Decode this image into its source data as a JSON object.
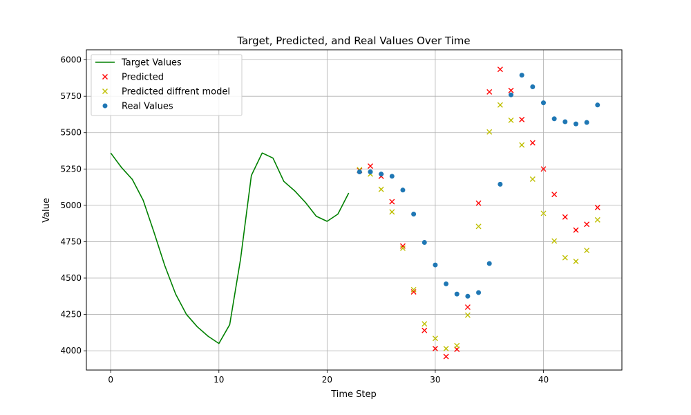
{
  "chart_data": {
    "type": "scatter",
    "title": "Target, Predicted, and Real Values Over Time",
    "xlabel": "Time Step",
    "ylabel": "Value",
    "xlim": [
      -2.25,
      47.25
    ],
    "ylim": [
      3867.5,
      6069.5
    ],
    "xticks": [
      0,
      10,
      20,
      30,
      40
    ],
    "yticks": [
      4000,
      4250,
      4500,
      4750,
      5000,
      5250,
      5500,
      5750,
      6000
    ],
    "grid": true,
    "legend_position": "upper left",
    "series": [
      {
        "name": "Target Values",
        "style": "line",
        "color": "#008000",
        "x": [
          0,
          1,
          2,
          3,
          4,
          5,
          6,
          7,
          8,
          9,
          10,
          11,
          12,
          13,
          14,
          15,
          16,
          17,
          18,
          19,
          20,
          21,
          22
        ],
        "y": [
          5360,
          5260,
          5178,
          5035,
          4815,
          4585,
          4390,
          4250,
          4165,
          4100,
          4050,
          4180,
          4630,
          5205,
          5360,
          5325,
          5165,
          5100,
          5020,
          4925,
          4890,
          4940,
          5085
        ]
      },
      {
        "name": "Predicted",
        "style": "x",
        "color": "#ff0000",
        "x": [
          23,
          24,
          25,
          26,
          27,
          28,
          29,
          30,
          31,
          32,
          33,
          34,
          35,
          36,
          37,
          38,
          39,
          40,
          41,
          42,
          43,
          44,
          45
        ],
        "y": [
          5240,
          5270,
          5200,
          5025,
          4720,
          4405,
          4140,
          4015,
          3960,
          4010,
          4300,
          5015,
          5780,
          5935,
          5790,
          5590,
          5430,
          5250,
          5075,
          4920,
          4830,
          4870,
          4985
        ]
      },
      {
        "name": "Predicted diffrent model",
        "style": "x",
        "color": "#bfbf00",
        "x": [
          23,
          24,
          25,
          26,
          27,
          28,
          29,
          30,
          31,
          32,
          33,
          34,
          35,
          36,
          37,
          38,
          39,
          40,
          41,
          42,
          43,
          44,
          45
        ],
        "y": [
          5245,
          5215,
          5110,
          4955,
          4705,
          4420,
          4185,
          4085,
          4015,
          4035,
          4245,
          4855,
          5505,
          5690,
          5585,
          5415,
          5180,
          4945,
          4755,
          4640,
          4615,
          4690,
          4900
        ]
      },
      {
        "name": "Real Values",
        "style": "dot",
        "color": "#1f77b4",
        "x": [
          23,
          24,
          25,
          26,
          27,
          28,
          29,
          30,
          31,
          32,
          33,
          34,
          35,
          36,
          37,
          38,
          39,
          40,
          41,
          42,
          43,
          44,
          45
        ],
        "y": [
          5230,
          5230,
          5215,
          5200,
          5105,
          4940,
          4745,
          4590,
          4460,
          4390,
          4375,
          4400,
          4600,
          5145,
          5760,
          5895,
          5815,
          5705,
          5595,
          5575,
          5560,
          5570,
          5690
        ]
      }
    ]
  }
}
